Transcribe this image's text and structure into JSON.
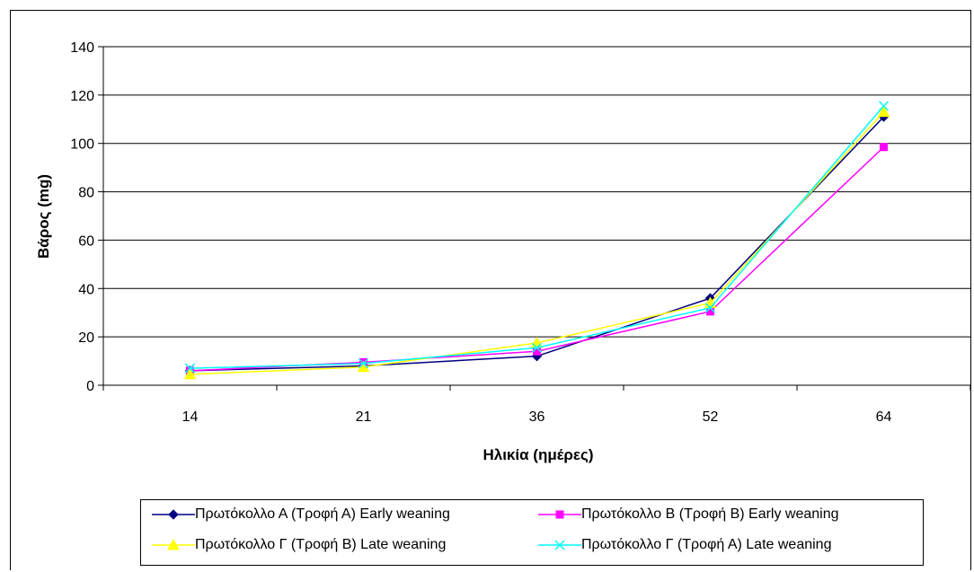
{
  "chart_data": {
    "type": "line",
    "categories": [
      "14",
      "21",
      "36",
      "52",
      "64"
    ],
    "ylabel": "Βάρος (mg)",
    "xlabel": "Ηλικία (ημέρες)",
    "ylim": [
      0,
      140
    ],
    "yticks": [
      0,
      20,
      40,
      60,
      80,
      100,
      120,
      140
    ],
    "grid": "horizontal",
    "legend_position": "bottom",
    "series": [
      {
        "name": "Πρωτόκολλο Α (Τροφή Α) Early weaning",
        "values": [
          6,
          8,
          12,
          36,
          111
        ],
        "color": "#000080",
        "marker": "diamond"
      },
      {
        "name": "Πρωτόκολλο Β (Τροφή Β) Early weaning",
        "values": [
          6,
          9.5,
          14,
          30.5,
          98.5
        ],
        "color": "#ff00ff",
        "marker": "square"
      },
      {
        "name": "Πρωτόκολλο Γ (Τροφή Β) Late weaning",
        "values": [
          4.5,
          7.5,
          17.5,
          34,
          113
        ],
        "color": "#ffff00",
        "marker": "triangle"
      },
      {
        "name": "Πρωτόκολλο Γ (Τροφή Α) Late weaning",
        "values": [
          7,
          9,
          15.5,
          32,
          115.5
        ],
        "color": "#00ffff",
        "marker": "x"
      }
    ]
  }
}
